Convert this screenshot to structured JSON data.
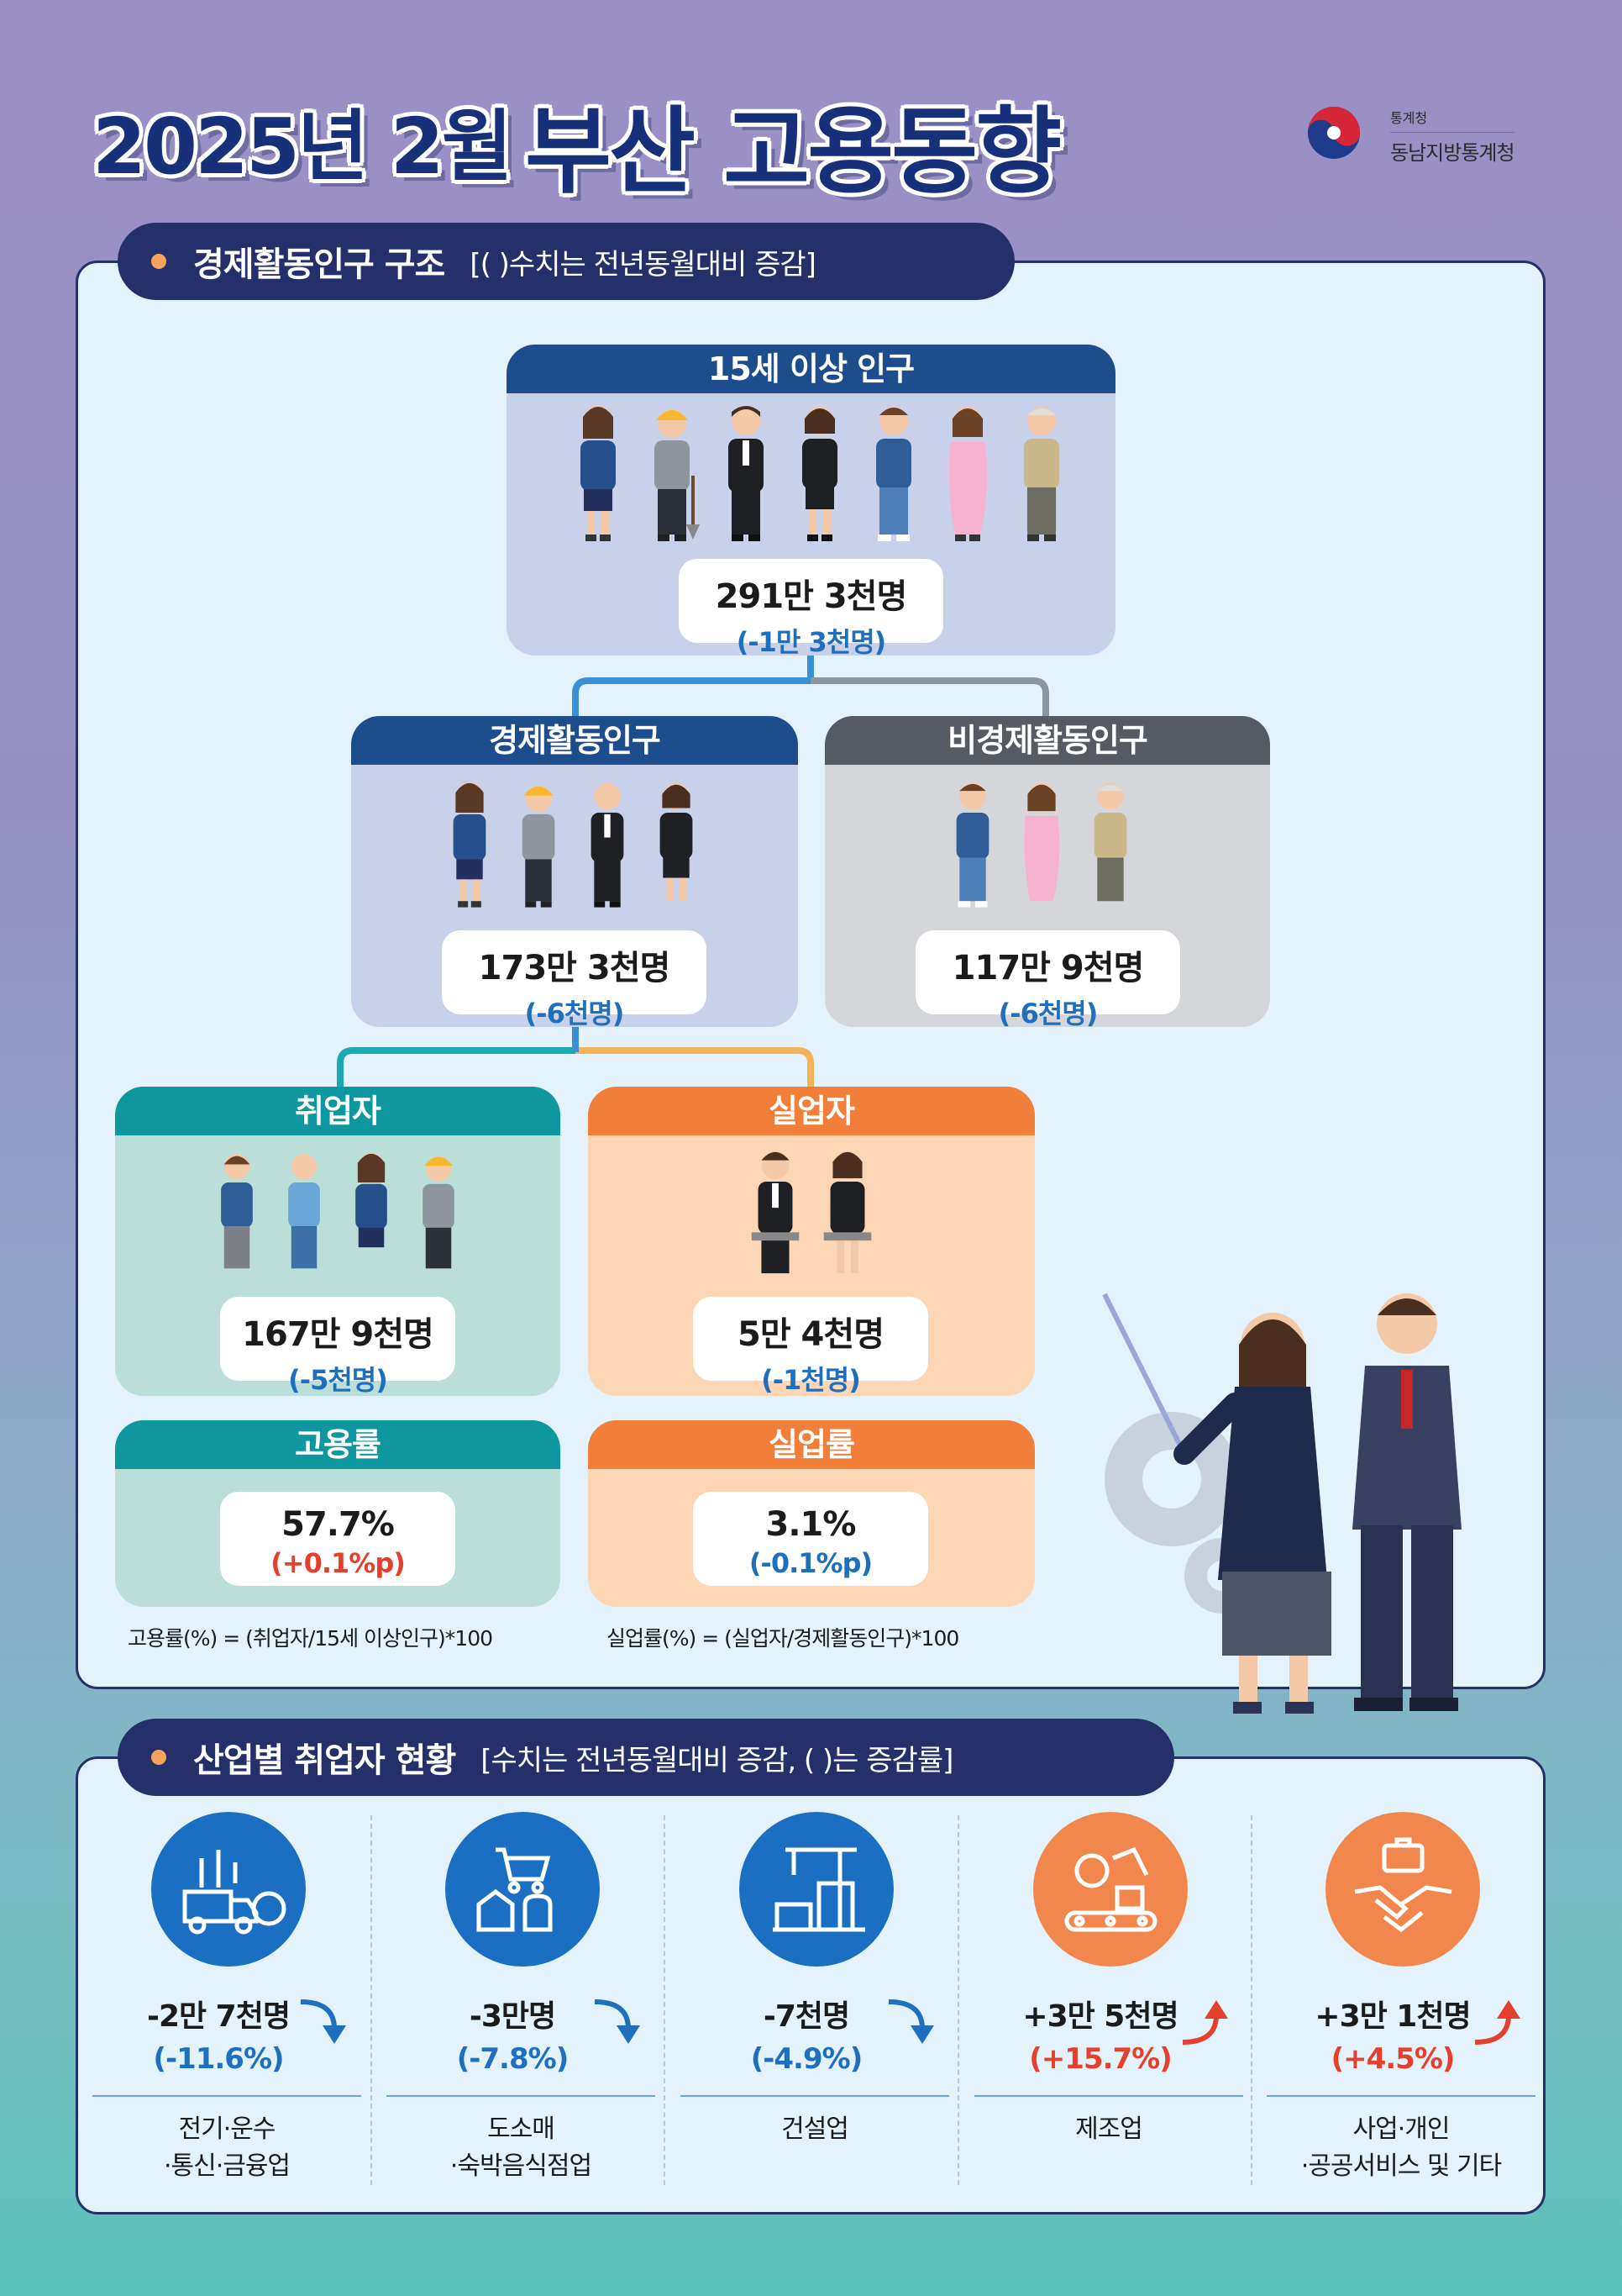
{
  "header": {
    "year_month": "2025년 2월",
    "title": "부산 고용동향",
    "agency_small": "통계청",
    "agency_name": "동남지방통계청"
  },
  "structure": {
    "section_label": "경제활동인구 구조",
    "section_note": "[(   )수치는 전년동월대비 증감]",
    "pop15": {
      "label": "15세 이상 인구",
      "value": "291만 3천명",
      "change": "(-1만 3천명)"
    },
    "econ_active": {
      "label": "경제활동인구",
      "value": "173만 3천명",
      "change": "(-6천명)"
    },
    "non_econ": {
      "label": "비경제활동인구",
      "value": "117만 9천명",
      "change": "(-6천명)"
    },
    "employed": {
      "label": "취업자",
      "value": "167만 9천명",
      "change": "(-5천명)"
    },
    "unemployed": {
      "label": "실업자",
      "value": "5만 4천명",
      "change": "(-1천명)"
    },
    "emp_rate": {
      "label": "고용률",
      "value": "57.7%",
      "change": "(+0.1%p)"
    },
    "unemp_rate": {
      "label": "실업률",
      "value": "3.1%",
      "change": "(-0.1%p)"
    },
    "emp_formula": "고용률(%) = (취업자/15세 이상인구)*100",
    "unemp_formula": "실업률(%) = (실업자/경제활동인구)*100"
  },
  "colors": {
    "navy": "#24306a",
    "blue_head": "#1d4d8c",
    "gray_head": "#555a63",
    "teal_head": "#0f97a0",
    "orange_head": "#f17f3a",
    "increase": "#e5402d",
    "decrease": "#1f6fbf"
  },
  "industry": {
    "section_label": "산업별 취업자 현황",
    "section_note": "[수치는 전년동월대비 증감, (   )는 증감률]",
    "items": [
      {
        "icon": "truck-coins-icon",
        "value": "-2만 7천명",
        "rate": "(-11.6%)",
        "name_line1": "전기·운수",
        "name_line2": "·통신·금융업",
        "direction": "down"
      },
      {
        "icon": "shopping-cart-house-icon",
        "value": "-3만명",
        "rate": "(-7.8%)",
        "name_line1": "도소매",
        "name_line2": "·숙박음식점업",
        "direction": "down"
      },
      {
        "icon": "crane-building-icon",
        "value": "-7천명",
        "rate": "(-4.9%)",
        "name_line1": "건설업",
        "name_line2": "",
        "direction": "down"
      },
      {
        "icon": "robot-arm-icon",
        "value": "+3만 5천명",
        "rate": "(+15.7%)",
        "name_line1": "제조업",
        "name_line2": "",
        "direction": "up"
      },
      {
        "icon": "handshake-icon",
        "value": "+3만 1천명",
        "rate": "(+4.5%)",
        "name_line1": "사업·개인",
        "name_line2": "·공공서비스 및 기타",
        "direction": "up"
      }
    ]
  }
}
